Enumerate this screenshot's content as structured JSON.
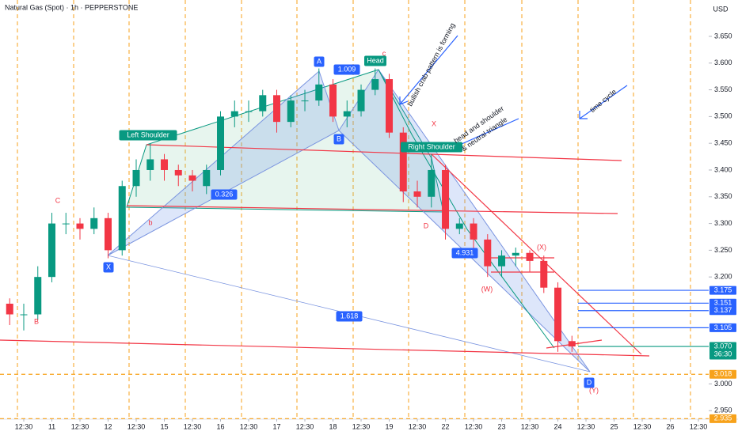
{
  "chart_data": {
    "type": "candlestick",
    "title": "Natural Gas (Spot) · 1h · PEPPERSTONE",
    "currency": "USD",
    "up_color": "#089981",
    "down_color": "#f23645",
    "x": [
      0,
      1,
      2,
      3,
      4,
      5,
      6,
      7,
      8,
      9,
      10,
      11,
      12,
      13,
      14,
      15,
      16,
      17,
      18,
      19,
      20,
      21,
      22,
      23,
      24,
      25,
      26,
      27,
      28,
      29,
      30,
      31,
      32,
      33,
      34,
      35,
      36,
      37,
      38,
      39,
      40
    ],
    "open": [
      3.15,
      3.13,
      3.13,
      3.2,
      3.3,
      3.3,
      3.29,
      3.31,
      3.25,
      3.37,
      3.4,
      3.42,
      3.4,
      3.39,
      3.37,
      3.4,
      3.5,
      3.51,
      3.51,
      3.54,
      3.49,
      3.53,
      3.53,
      3.56,
      3.5,
      3.51,
      3.55,
      3.57,
      3.47,
      3.36,
      3.35,
      3.4,
      3.29,
      3.3,
      3.27,
      3.22,
      3.24,
      3.245,
      3.23,
      3.18,
      3.08
    ],
    "high": [
      3.16,
      3.15,
      3.22,
      3.32,
      3.32,
      3.31,
      3.33,
      3.32,
      3.38,
      3.42,
      3.45,
      3.43,
      3.41,
      3.4,
      3.41,
      3.51,
      3.53,
      3.53,
      3.55,
      3.55,
      3.54,
      3.55,
      3.59,
      3.57,
      3.53,
      3.56,
      3.59,
      3.58,
      3.48,
      3.38,
      3.43,
      3.41,
      3.31,
      3.31,
      3.28,
      3.25,
      3.255,
      3.25,
      3.24,
      3.19,
      3.09
    ],
    "low": [
      3.11,
      3.1,
      3.12,
      3.19,
      3.28,
      3.27,
      3.28,
      3.235,
      3.24,
      3.35,
      3.38,
      3.38,
      3.37,
      3.36,
      3.355,
      3.39,
      3.48,
      3.49,
      3.5,
      3.47,
      3.48,
      3.51,
      3.52,
      3.49,
      3.48,
      3.5,
      3.54,
      3.46,
      3.34,
      3.33,
      3.33,
      3.27,
      3.28,
      3.25,
      3.2,
      3.2,
      3.22,
      3.21,
      3.17,
      3.06,
      3.06
    ],
    "close": [
      3.13,
      3.13,
      3.2,
      3.3,
      3.3,
      3.29,
      3.31,
      3.25,
      3.37,
      3.4,
      3.42,
      3.4,
      3.39,
      3.38,
      3.4,
      3.5,
      3.51,
      3.51,
      3.54,
      3.49,
      3.53,
      3.53,
      3.56,
      3.5,
      3.51,
      3.55,
      3.57,
      3.47,
      3.36,
      3.35,
      3.4,
      3.29,
      3.3,
      3.27,
      3.22,
      3.24,
      3.245,
      3.23,
      3.18,
      3.08,
      3.07
    ],
    "xlim": [
      -0.69,
      49.73
    ],
    "xticks": [
      {
        "value": 1,
        "label": "12:30"
      },
      {
        "value": 3,
        "label": "11"
      },
      {
        "value": 5,
        "label": "12:30"
      },
      {
        "value": 7,
        "label": "12"
      },
      {
        "value": 9,
        "label": "12:30"
      },
      {
        "value": 11,
        "label": "15"
      },
      {
        "value": 13,
        "label": "12:30"
      },
      {
        "value": 15,
        "label": "16"
      },
      {
        "value": 17,
        "label": "12:30"
      },
      {
        "value": 19,
        "label": "17"
      },
      {
        "value": 21,
        "label": "12:30"
      },
      {
        "value": 23,
        "label": "18"
      },
      {
        "value": 25,
        "label": "12:30"
      },
      {
        "value": 27,
        "label": "19"
      },
      {
        "value": 29,
        "label": "12:30"
      },
      {
        "value": 31,
        "label": "22"
      },
      {
        "value": 33,
        "label": "12:30"
      },
      {
        "value": 35,
        "label": "23"
      },
      {
        "value": 37,
        "label": "12:30"
      },
      {
        "value": 39,
        "label": "24"
      },
      {
        "value": 41,
        "label": "12:30"
      },
      {
        "value": 43,
        "label": "25"
      },
      {
        "value": 45,
        "label": "12:30"
      },
      {
        "value": 47,
        "label": "26"
      },
      {
        "value": 49,
        "label": "12:30"
      }
    ],
    "ylim": [
      2.934,
      3.718
    ],
    "yticks": [
      {
        "value": 3.65,
        "label": "3.650"
      },
      {
        "value": 3.6,
        "label": "3.600"
      },
      {
        "value": 3.55,
        "label": "3.550"
      },
      {
        "value": 3.5,
        "label": "3.500"
      },
      {
        "value": 3.45,
        "label": "3.450"
      },
      {
        "value": 3.4,
        "label": "3.400"
      },
      {
        "value": 3.35,
        "label": "3.350"
      },
      {
        "value": 3.3,
        "label": "3.300"
      },
      {
        "value": 3.25,
        "label": "3.250"
      },
      {
        "value": 3.2,
        "label": "3.200"
      },
      {
        "value": 3,
        "label": "3.000"
      },
      {
        "value": 2.95,
        "label": "2.950"
      }
    ],
    "levels": [
      {
        "value": 3.175,
        "color": "#2962ff"
      },
      {
        "value": 3.151,
        "color": "#2962ff"
      },
      {
        "value": 3.137,
        "color": "#2962ff"
      },
      {
        "value": 3.105,
        "color": "#2962ff"
      },
      {
        "value": 3.07,
        "label": "3.070",
        "countdown": "36:30",
        "color": "#089981"
      },
      {
        "value": 3.018,
        "color": "#f7a21b"
      },
      {
        "value": 2.935,
        "color": "#f7a21b"
      }
    ],
    "annotations": [
      "Left Shoulder",
      "Head",
      "Right Shoulder",
      "A",
      "B",
      "X",
      "D",
      "1.009",
      "0.326",
      "4.931",
      "1.618",
      "bullish crab pattern is forming",
      "head and shoulder",
      "& neutral triangle",
      "time cycle",
      "X",
      "C",
      "B",
      "D",
      "(X)",
      "(W)",
      "(Y)",
      "c",
      "b"
    ]
  }
}
